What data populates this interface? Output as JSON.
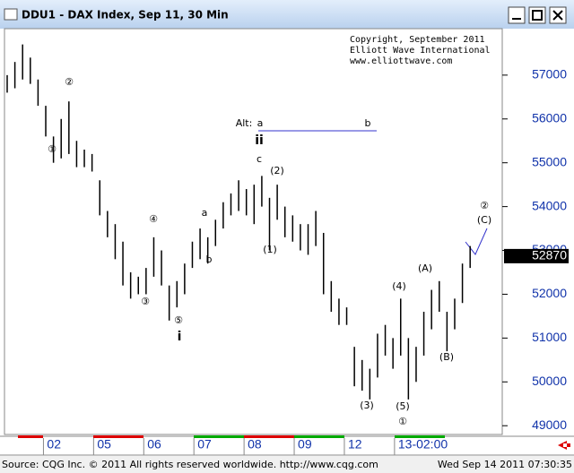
{
  "chart_data": {
    "type": "range",
    "title": "DDU1 - DAX Index, Sep 11, 30 Min",
    "copyright": [
      "Copyright, September 2011",
      "Elliott Wave International",
      "www.elliottwave.com"
    ],
    "footer_left": "Source: CQG Inc. © 2011 All rights reserved worldwide. http://www.cqg.com",
    "footer_right": "Wed Sep 14 2011 07:30:35",
    "annotations": [
      "①",
      "②",
      "③",
      "④",
      "⑤",
      "i",
      "a",
      "b",
      "c",
      "(2)",
      "(1)",
      "Alt:",
      "a",
      "b",
      "ii",
      "(3)",
      "(4)",
      "(5)",
      "①",
      "(A)",
      "(B)",
      "②",
      "(C)"
    ],
    "highs": [
      57000,
      57300,
      57700,
      57400,
      56900,
      56300,
      55600,
      56000,
      56400,
      55500,
      55300,
      55200,
      54600,
      53900,
      53600,
      53200,
      52500,
      52400,
      52600,
      53300,
      53000,
      52200,
      52300,
      52700,
      53200,
      53500,
      53300,
      53700,
      54100,
      54300,
      54600,
      54400,
      54500,
      54700,
      54200,
      54500,
      54000,
      53800,
      53600,
      53600,
      53900,
      53400,
      52300,
      51900,
      51700,
      50800,
      50500,
      50300,
      51100,
      51300,
      51000,
      51900,
      51000,
      50800,
      51600,
      52100,
      52300,
      51600,
      51900,
      52700,
      53100
    ],
    "lows": [
      56600,
      56700,
      56900,
      56800,
      56300,
      55600,
      55000,
      55100,
      55200,
      54900,
      54900,
      54800,
      53800,
      53300,
      52800,
      52200,
      51900,
      52000,
      52000,
      52400,
      52200,
      51400,
      51700,
      52000,
      52600,
      52800,
      52700,
      53100,
      53500,
      53800,
      53900,
      53800,
      53600,
      54000,
      53000,
      53700,
      53300,
      53200,
      53000,
      52900,
      53100,
      52000,
      51600,
      51300,
      51300,
      49900,
      49800,
      49600,
      50100,
      50600,
      50300,
      50600,
      49600,
      50000,
      50600,
      51200,
      51600,
      50700,
      51200,
      51800,
      52600
    ],
    "last_price": 52870,
    "xlim": [
      0,
      63
    ],
    "ylim": [
      48800,
      58060
    ],
    "yticks": [
      49000,
      50000,
      51000,
      52000,
      53000,
      54000,
      55000,
      56000,
      57000
    ],
    "xticks": [
      {
        "value": 4.7,
        "label": "02"
      },
      {
        "value": 11.2,
        "label": "05"
      },
      {
        "value": 17.7,
        "label": "06"
      },
      {
        "value": 24.2,
        "label": "07"
      },
      {
        "value": 30.7,
        "label": "08"
      },
      {
        "value": 37.2,
        "label": "09"
      },
      {
        "value": 43.7,
        "label": "12"
      },
      {
        "value": 50.2,
        "label": "13-02:00"
      }
    ],
    "color": "#000000"
  }
}
